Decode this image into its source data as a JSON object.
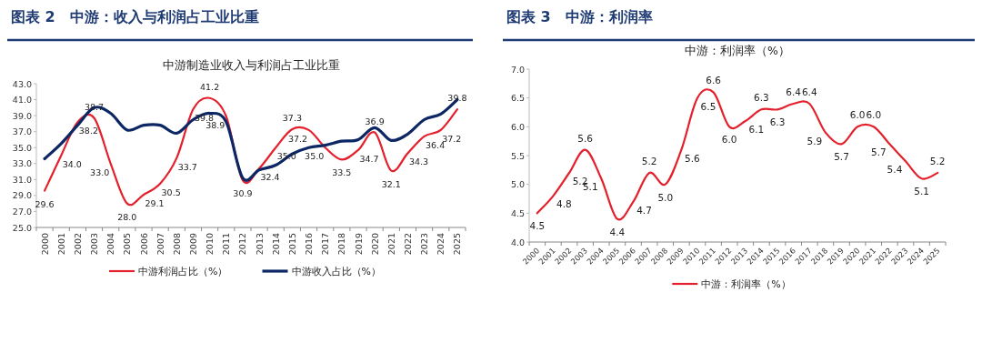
{
  "chart_data": [
    {
      "type": "line",
      "title": "图表 2　中游：收入与利润占工业比重",
      "subtitle": "中游制造业收入与利润占工业比重",
      "categories": [
        "2000",
        "2001",
        "2002",
        "2003",
        "2004",
        "2005",
        "2006",
        "2007",
        "2008",
        "2009",
        "2010",
        "2011",
        "2012",
        "2013",
        "2014",
        "2015",
        "2016",
        "2017",
        "2018",
        "2019",
        "2020",
        "2021",
        "2022",
        "2023",
        "2024",
        "2025"
      ],
      "series": [
        {
          "name": "中游利润占比（%）",
          "color": "#e3202b",
          "values": [
            29.6,
            34.0,
            38.2,
            38.7,
            33.0,
            28.0,
            29.1,
            30.5,
            33.7,
            39.8,
            41.2,
            38.9,
            30.9,
            32.4,
            35.0,
            37.3,
            37.2,
            35.0,
            33.5,
            34.7,
            36.9,
            32.1,
            34.3,
            36.4,
            37.2,
            39.8
          ],
          "value_labels": [
            "29.6",
            "34.0",
            "38.2",
            "38.7",
            "33.0",
            "28.0",
            "29.1",
            "30.5",
            "33.7",
            "39.8",
            "41.2",
            "38.9",
            "30.9",
            "32.4",
            "35.0",
            "37.3",
            "37.2",
            "35.0",
            "33.5",
            "34.7",
            "36.9",
            "32.1",
            "34.3",
            "36.4",
            "37.2",
            "39.8"
          ]
        },
        {
          "name": "中游收入占比（%）",
          "color": "#0d2765",
          "values": [
            33.6,
            35.5,
            37.8,
            40.0,
            39.3,
            37.2,
            37.8,
            37.8,
            36.8,
            38.5,
            39.3,
            38.2,
            31.2,
            32.2,
            32.8,
            34.2,
            35.0,
            35.3,
            35.8,
            36.0,
            37.5,
            35.9,
            36.7,
            38.5,
            39.2,
            41.0
          ]
        }
      ],
      "ylim": [
        25,
        43
      ],
      "yticks": [
        {
          "value": 25,
          "label": "25.0"
        },
        {
          "value": 27,
          "label": "27.0"
        },
        {
          "value": 29,
          "label": "29.0"
        },
        {
          "value": 31,
          "label": "31.0"
        },
        {
          "value": 33,
          "label": "33.0"
        },
        {
          "value": 35,
          "label": "35.0"
        },
        {
          "value": 37,
          "label": "37.0"
        },
        {
          "value": 39,
          "label": "39.0"
        },
        {
          "value": 41,
          "label": "41.0"
        },
        {
          "value": 43,
          "label": "43.0"
        }
      ],
      "legend": "bottom"
    },
    {
      "type": "line",
      "title": "图表 3　中游：利润率",
      "subtitle": "中游：利润率（%）",
      "categories": [
        "2000",
        "2001",
        "2002",
        "2003",
        "2004",
        "2005",
        "2006",
        "2007",
        "2008",
        "2009",
        "2010",
        "2011",
        "2012",
        "2013",
        "2014",
        "2015",
        "2016",
        "2017",
        "2018",
        "2019",
        "2020",
        "2021",
        "2022",
        "2023",
        "2024",
        "2025"
      ],
      "series": [
        {
          "name": "中游：利润率（%）",
          "color": "#e3202b",
          "values": [
            4.5,
            4.8,
            5.2,
            5.6,
            5.1,
            4.4,
            4.7,
            5.2,
            5.0,
            5.6,
            6.5,
            6.6,
            6.0,
            6.1,
            6.3,
            6.3,
            6.4,
            6.4,
            5.9,
            5.7,
            6.0,
            6.0,
            5.7,
            5.4,
            5.1,
            5.2
          ],
          "value_labels": [
            "4.5",
            "4.8",
            "5.2",
            "5.6",
            "5.1",
            "4.4",
            "4.7",
            "5.2",
            "5.0",
            "5.6",
            "6.5",
            "6.6",
            "6.0",
            "6.1",
            "6.3",
            "6.3",
            "6.4",
            "6.4",
            "5.9",
            "5.7",
            "6.0",
            "6.0",
            "5.7",
            "5.4",
            "5.1",
            "5.2"
          ]
        }
      ],
      "ylim": [
        4,
        7
      ],
      "yticks": [
        {
          "value": 4,
          "label": "4.0"
        },
        {
          "value": 4.5,
          "label": "4.5"
        },
        {
          "value": 5,
          "label": "5.0"
        },
        {
          "value": 5.5,
          "label": "5.5"
        },
        {
          "value": 6,
          "label": "6.0"
        },
        {
          "value": 6.5,
          "label": "6.5"
        },
        {
          "value": 7,
          "label": "7.0"
        }
      ],
      "legend": "bottom"
    }
  ]
}
